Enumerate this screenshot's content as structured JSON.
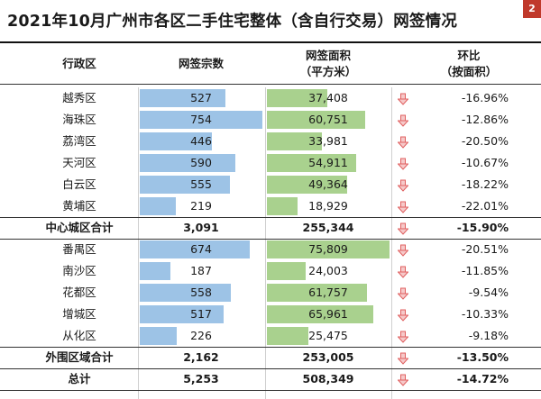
{
  "title": "2021年10月广州市各区二手住宅整体（含自行交易）网签情况",
  "badge": "2",
  "headers": {
    "district": "行政区",
    "count": "网签宗数",
    "area_line1": "网签面积",
    "area_line2": "（平方米）",
    "mom_line1": "环比",
    "mom_line2": "（按面积）"
  },
  "colors": {
    "count_bar": "#9dc3e6",
    "area_bar": "#a9d18e",
    "down_arrow": "#e06060"
  },
  "chart_data": {
    "type": "table",
    "columns": [
      "行政区",
      "网签宗数",
      "网签面积（平方米）",
      "环比（按面积）"
    ],
    "rows": [
      {
        "name": "越秀区",
        "count": 527,
        "count_label": "527",
        "area": 37408,
        "area_label": "37,408",
        "mom": "-16.96%",
        "trend": "down",
        "subtotal": false
      },
      {
        "name": "海珠区",
        "count": 754,
        "count_label": "754",
        "area": 60751,
        "area_label": "60,751",
        "mom": "-12.86%",
        "trend": "down",
        "subtotal": false
      },
      {
        "name": "荔湾区",
        "count": 446,
        "count_label": "446",
        "area": 33981,
        "area_label": "33,981",
        "mom": "-20.50%",
        "trend": "down",
        "subtotal": false
      },
      {
        "name": "天河区",
        "count": 590,
        "count_label": "590",
        "area": 54911,
        "area_label": "54,911",
        "mom": "-10.67%",
        "trend": "down",
        "subtotal": false
      },
      {
        "name": "白云区",
        "count": 555,
        "count_label": "555",
        "area": 49364,
        "area_label": "49,364",
        "mom": "-18.22%",
        "trend": "down",
        "subtotal": false
      },
      {
        "name": "黄埔区",
        "count": 219,
        "count_label": "219",
        "area": 18929,
        "area_label": "18,929",
        "mom": "-22.01%",
        "trend": "down",
        "subtotal": false
      },
      {
        "name": "中心城区合计",
        "count": 3091,
        "count_label": "3,091",
        "area": 255344,
        "area_label": "255,344",
        "mom": "-15.90%",
        "trend": "down",
        "subtotal": true
      },
      {
        "name": "番禺区",
        "count": 674,
        "count_label": "674",
        "area": 75809,
        "area_label": "75,809",
        "mom": "-20.51%",
        "trend": "down",
        "subtotal": false
      },
      {
        "name": "南沙区",
        "count": 187,
        "count_label": "187",
        "area": 24003,
        "area_label": "24,003",
        "mom": "-11.85%",
        "trend": "down",
        "subtotal": false
      },
      {
        "name": "花都区",
        "count": 558,
        "count_label": "558",
        "area": 61757,
        "area_label": "61,757",
        "mom": "-9.54%",
        "trend": "down",
        "subtotal": false
      },
      {
        "name": "增城区",
        "count": 517,
        "count_label": "517",
        "area": 65961,
        "area_label": "65,961",
        "mom": "-10.33%",
        "trend": "down",
        "subtotal": false
      },
      {
        "name": "从化区",
        "count": 226,
        "count_label": "226",
        "area": 25475,
        "area_label": "25,475",
        "mom": "-9.18%",
        "trend": "down",
        "subtotal": false
      },
      {
        "name": "外围区域合计",
        "count": 2162,
        "count_label": "2,162",
        "area": 253005,
        "area_label": "253,005",
        "mom": "-13.50%",
        "trend": "down",
        "subtotal": true
      },
      {
        "name": "总计",
        "count": 5253,
        "count_label": "5,253",
        "area": 508349,
        "area_label": "508,349",
        "mom": "-14.72%",
        "trend": "down",
        "subtotal": true
      }
    ],
    "count_scale_max": 754,
    "area_scale_max": 75809
  }
}
